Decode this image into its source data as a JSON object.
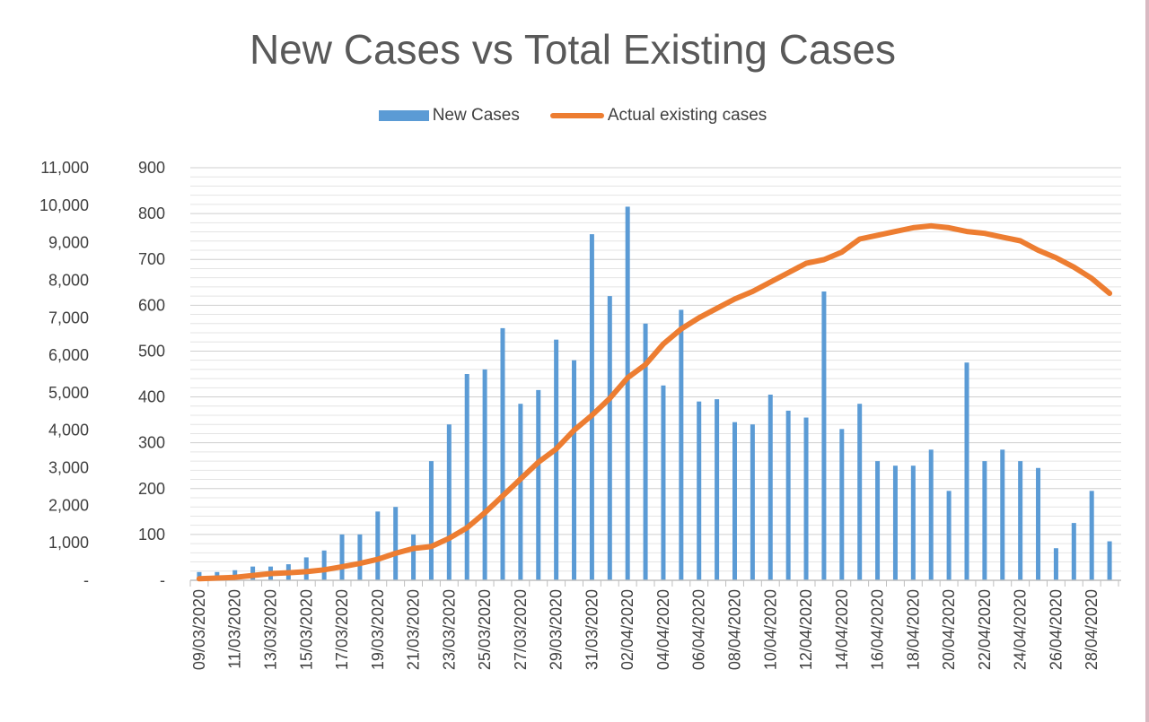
{
  "chart_data": {
    "type": "bar",
    "title": "New Cases vs Total Existing Cases",
    "legend_position": "top",
    "grid": true,
    "x_tick_labels": [
      "09/03/2020",
      "11/03/2020",
      "13/03/2020",
      "15/03/2020",
      "17/03/2020",
      "19/03/2020",
      "21/03/2020",
      "23/03/2020",
      "25/03/2020",
      "27/03/2020",
      "29/03/2020",
      "31/03/2020",
      "02/04/2020",
      "04/04/2020",
      "06/04/2020",
      "08/04/2020",
      "10/04/2020",
      "12/04/2020",
      "14/04/2020",
      "16/04/2020",
      "18/04/2020",
      "20/04/2020",
      "22/04/2020",
      "24/04/2020",
      "26/04/2020",
      "28/04/2020"
    ],
    "left_axis": {
      "ylim": [
        0,
        11000
      ],
      "ticks": [
        0,
        1000,
        2000,
        3000,
        4000,
        5000,
        6000,
        7000,
        8000,
        9000,
        10000,
        11000
      ],
      "tick_labels": [
        "-",
        "1,000",
        "2,000",
        "3,000",
        "4,000",
        "5,000",
        "6,000",
        "7,000",
        "8,000",
        "9,000",
        "10,000",
        "11,000"
      ]
    },
    "right_axis": {
      "ylim": [
        0,
        900
      ],
      "ticks": [
        0,
        100,
        200,
        300,
        400,
        500,
        600,
        700,
        800,
        900
      ],
      "tick_labels": [
        "-",
        "100",
        "200",
        "300",
        "400",
        "500",
        "600",
        "700",
        "800",
        "900"
      ]
    },
    "series": [
      {
        "name": "New Cases",
        "type": "bar",
        "axis": "right",
        "color": "#5b9bd5",
        "values": [
          18,
          18,
          22,
          30,
          30,
          35,
          50,
          65,
          100,
          100,
          150,
          160,
          100,
          260,
          340,
          450,
          460,
          550,
          385,
          415,
          525,
          480,
          755,
          620,
          815,
          560,
          425,
          590,
          390,
          395,
          345,
          340,
          405,
          370,
          355,
          630,
          330,
          385,
          260,
          250,
          250,
          285,
          195,
          475,
          260,
          285,
          260,
          245,
          70,
          125,
          195,
          85
        ]
      },
      {
        "name": "Actual existing cases",
        "type": "line",
        "axis": "left",
        "color": "#ed7d31",
        "values": [
          40,
          60,
          80,
          130,
          180,
          200,
          230,
          280,
          360,
          450,
          560,
          720,
          850,
          900,
          1120,
          1400,
          1800,
          2250,
          2700,
          3150,
          3500,
          4000,
          4400,
          4850,
          5400,
          5750,
          6300,
          6700,
          7000,
          7250,
          7500,
          7700,
          7950,
          8200,
          8450,
          8550,
          8750,
          9100,
          9200,
          9300,
          9400,
          9450,
          9400,
          9300,
          9250,
          9150,
          9050,
          8800,
          8600,
          8350,
          8050,
          7650
        ]
      }
    ]
  }
}
